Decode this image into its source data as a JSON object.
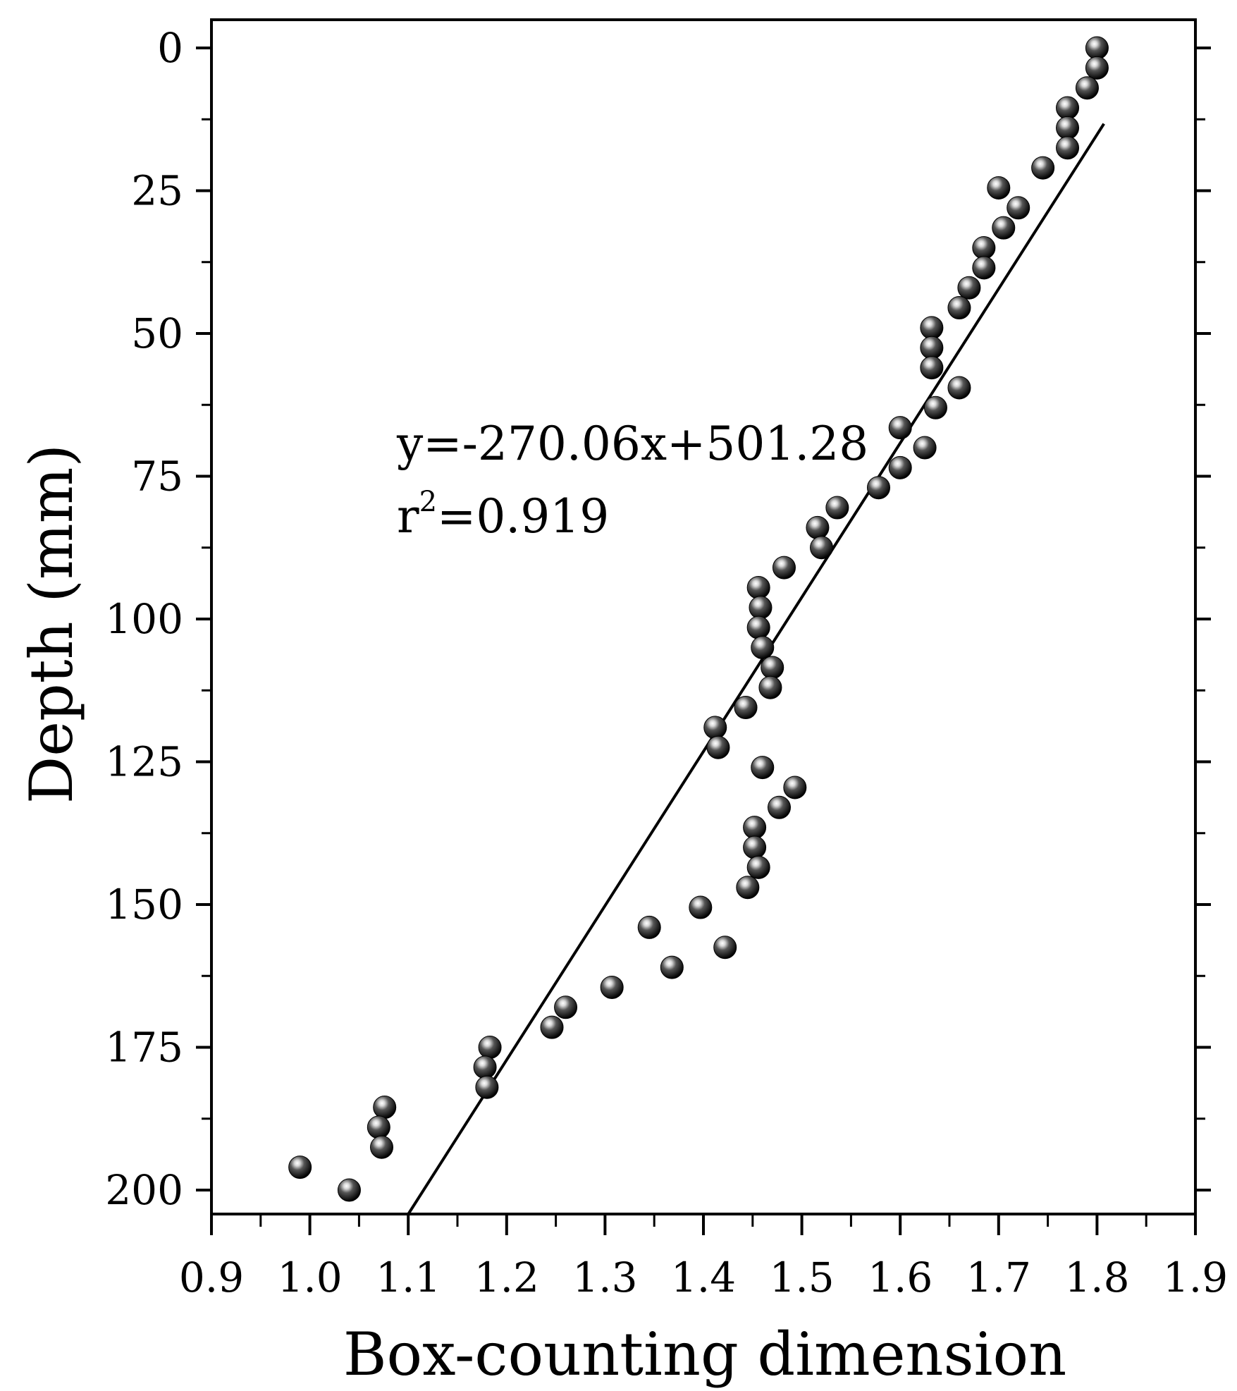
{
  "chart_data": {
    "type": "scatter",
    "xlabel": "Box-counting dimension",
    "ylabel": "Depth (mm)",
    "xlim": [
      0.9,
      1.9
    ],
    "ylim": [
      0,
      205
    ],
    "y_inverted": true,
    "x_ticks": [
      "0.9",
      "1.0",
      "1.1",
      "1.2",
      "1.3",
      "1.4",
      "1.5",
      "1.6",
      "1.7",
      "1.8",
      "1.9"
    ],
    "x_tick_values": [
      0.9,
      1.0,
      1.1,
      1.2,
      1.3,
      1.4,
      1.5,
      1.6,
      1.7,
      1.8,
      1.9
    ],
    "y_ticks": [
      "0",
      "25",
      "50",
      "75",
      "100",
      "125",
      "150",
      "175",
      "200"
    ],
    "y_tick_values": [
      0,
      25,
      50,
      75,
      100,
      125,
      150,
      175,
      200
    ],
    "grid": false,
    "series": [
      {
        "points": [
          [
            1.8,
            0.0
          ],
          [
            1.8,
            3.5
          ],
          [
            1.79,
            7.0
          ],
          [
            1.77,
            10.5
          ],
          [
            1.77,
            14.0
          ],
          [
            1.77,
            17.5
          ],
          [
            1.745,
            21.0
          ],
          [
            1.7,
            24.5
          ],
          [
            1.72,
            28.0
          ],
          [
            1.705,
            31.5
          ],
          [
            1.685,
            35.0
          ],
          [
            1.685,
            38.5
          ],
          [
            1.67,
            42.0
          ],
          [
            1.66,
            45.5
          ],
          [
            1.632,
            49.0
          ],
          [
            1.632,
            52.5
          ],
          [
            1.632,
            56.0
          ],
          [
            1.66,
            59.5
          ],
          [
            1.636,
            63.0
          ],
          [
            1.6,
            66.5
          ],
          [
            1.625,
            70.0
          ],
          [
            1.6,
            73.5
          ],
          [
            1.578,
            77.0
          ],
          [
            1.536,
            80.5
          ],
          [
            1.516,
            84.0
          ],
          [
            1.52,
            87.5
          ],
          [
            1.482,
            91.0
          ],
          [
            1.456,
            94.5
          ],
          [
            1.458,
            98.0
          ],
          [
            1.456,
            101.5
          ],
          [
            1.46,
            105.0
          ],
          [
            1.47,
            108.5
          ],
          [
            1.468,
            112.0
          ],
          [
            1.443,
            115.5
          ],
          [
            1.412,
            119.0
          ],
          [
            1.415,
            122.5
          ],
          [
            1.46,
            126.0
          ],
          [
            1.493,
            129.5
          ],
          [
            1.477,
            133.0
          ],
          [
            1.452,
            136.5
          ],
          [
            1.452,
            140.0
          ],
          [
            1.456,
            143.5
          ],
          [
            1.445,
            147.0
          ],
          [
            1.397,
            150.5
          ],
          [
            1.422,
            157.5
          ],
          [
            1.345,
            154.0
          ],
          [
            1.368,
            161.0
          ],
          [
            1.307,
            164.5
          ],
          [
            1.26,
            168.0
          ],
          [
            1.246,
            171.5
          ],
          [
            1.183,
            175.0
          ],
          [
            1.178,
            178.5
          ],
          [
            1.18,
            182.0
          ],
          [
            1.076,
            185.5
          ],
          [
            1.07,
            189.0
          ],
          [
            1.073,
            192.5
          ],
          [
            0.99,
            196.0
          ],
          [
            1.04,
            200.0
          ]
        ]
      }
    ],
    "fit_line": {
      "slope": -270.06,
      "intercept": 501.28,
      "x_range": [
        1.1,
        1.807
      ]
    },
    "annotations": {
      "equation": "y=-270.06x+501.28",
      "r2_base": "r",
      "r2_exp": "2",
      "r2_value": "=0.919"
    }
  }
}
